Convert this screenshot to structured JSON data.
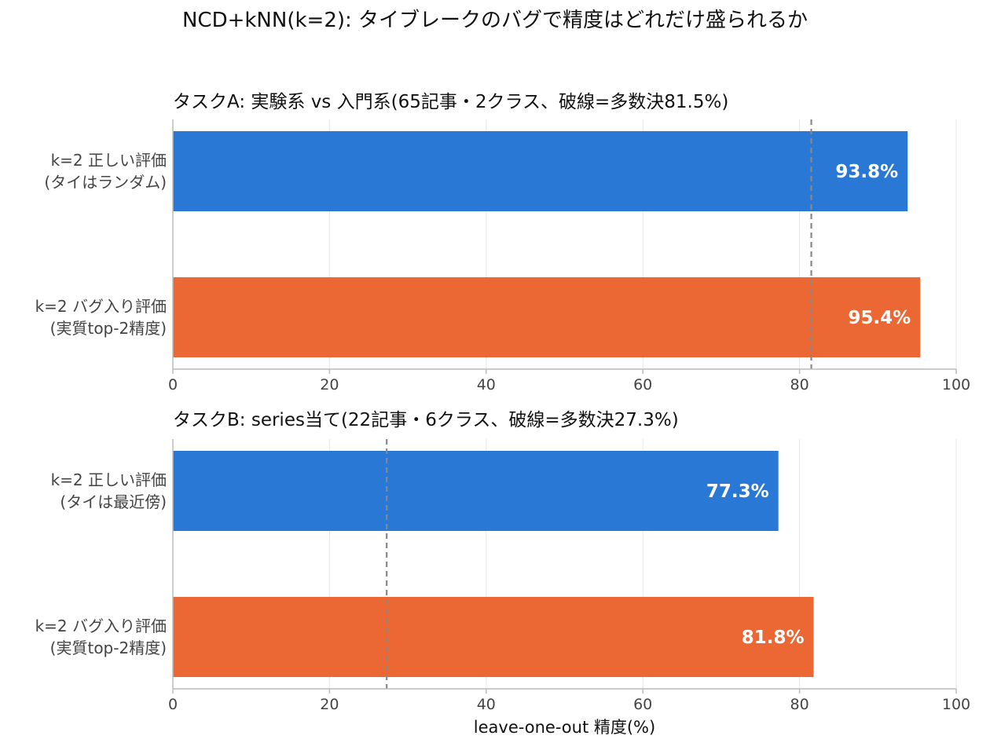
{
  "title": "NCD+kNN(k=2): タイブレークのバグで精度はどれだけ盛られるか",
  "colors": {
    "correct": "#2a78d6",
    "buggy": "#eb6834",
    "baseline": "#888888",
    "grid": "#e6e6e6",
    "axis": "#bbbbbb"
  },
  "chart_data": [
    {
      "type": "bar",
      "orientation": "horizontal",
      "title": "タスクA: 実験系 vs 入門系(65記事・2クラス、破線=多数決81.5%)",
      "categories": [
        [
          "k=2 正しい評価",
          "(タイはランダム)"
        ],
        [
          "k=2 バグ入り評価",
          "(実質top-2精度)"
        ]
      ],
      "values": [
        93.8,
        95.4
      ],
      "value_labels": [
        "93.8%",
        "95.4%"
      ],
      "bar_colors": [
        "#2a78d6",
        "#eb6834"
      ],
      "baseline": 81.5,
      "xlim": [
        0,
        100
      ],
      "xticks": [
        0,
        20,
        40,
        60,
        80,
        100
      ],
      "xlabel": "",
      "grid": true
    },
    {
      "type": "bar",
      "orientation": "horizontal",
      "title": "タスクB: series当て(22記事・6クラス、破線=多数決27.3%)",
      "categories": [
        [
          "k=2 正しい評価",
          "(タイは最近傍)"
        ],
        [
          "k=2 バグ入り評価",
          "(実質top-2精度)"
        ]
      ],
      "values": [
        77.3,
        81.8
      ],
      "value_labels": [
        "77.3%",
        "81.8%"
      ],
      "bar_colors": [
        "#2a78d6",
        "#eb6834"
      ],
      "baseline": 27.3,
      "xlim": [
        0,
        100
      ],
      "xticks": [
        0,
        20,
        40,
        60,
        80,
        100
      ],
      "xlabel": "leave-one-out 精度(%)",
      "grid": true
    }
  ]
}
